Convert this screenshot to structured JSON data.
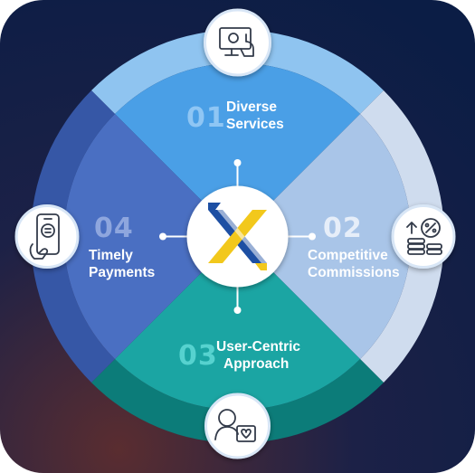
{
  "segments": [
    {
      "num": "01",
      "line1": "Diverse",
      "line2": "Services",
      "color": "#4a9fe6",
      "icon": "computer-touch-icon"
    },
    {
      "num": "02",
      "line1": "Competitive",
      "line2": "Commissions",
      "color": "#a9c5e8",
      "icon": "commission-growth-icon"
    },
    {
      "num": "03",
      "line1": "User-Centric",
      "line2": "Approach",
      "color": "#1ba5a3",
      "icon": "user-profile-icon"
    },
    {
      "num": "04",
      "line1": "Timely",
      "line2": "Payments",
      "color": "#4a6fc2",
      "icon": "mobile-payment-icon"
    }
  ],
  "center": {
    "icon": "x-logo-icon",
    "colors": [
      "#1d4fa3",
      "#f2c81c"
    ]
  },
  "background": [
    "#0d1e42",
    "#251f3c",
    "#4a2b33"
  ]
}
